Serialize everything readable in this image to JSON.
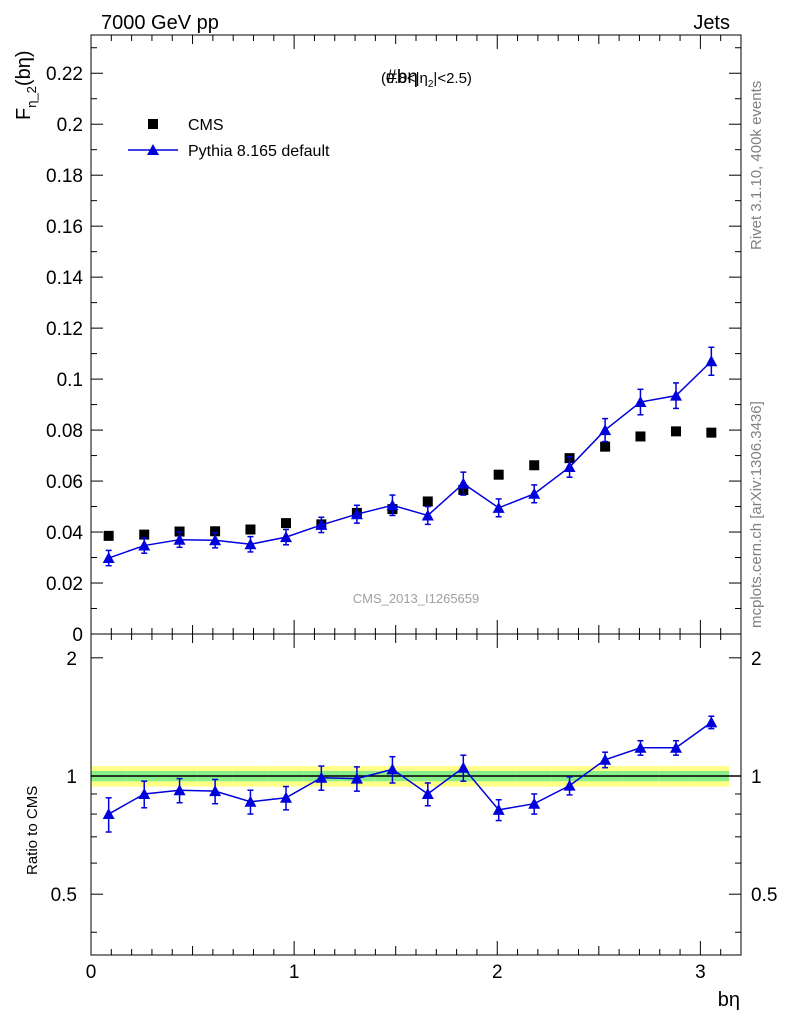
{
  "header": {
    "left": "7000 GeV pp",
    "right": "Jets"
  },
  "side_labels": {
    "rivet": "Rivet 3.1.10,  400k events",
    "mcplots": "mcplots.cern.ch [arXiv:1306.3436]"
  },
  "chart_data": {
    "type": "scatter",
    "title_main": "#bη",
    "title_sub": "(0.8<|η",
    "title_sub_index": "2",
    "title_sub_end": "|<2.5)",
    "analysis_label": "CMS_2013_I1265659",
    "ylabel": "F",
    "ylabel_sub": "η_2",
    "ylabel_tail": "(bη)",
    "xlabel": "bη",
    "ratio_ylabel": "Ratio to CMS",
    "xlim": [
      0,
      3.2
    ],
    "ylim": [
      0,
      0.235
    ],
    "ratio_ylim": [
      0.35,
      2.3
    ],
    "x_ticks": [
      "0",
      "1",
      "2",
      "3"
    ],
    "y_ticks": [
      "0",
      "0.02",
      "0.04",
      "0.06",
      "0.08",
      "0.1",
      "0.12",
      "0.14",
      "0.16",
      "0.18",
      "0.2",
      "0.22"
    ],
    "ratio_ticks": [
      "0.5",
      "1",
      "2"
    ],
    "legend": {
      "cms": "CMS",
      "pythia": "Pythia 8.165 default"
    },
    "x": [
      0.087,
      0.262,
      0.436,
      0.611,
      0.785,
      0.96,
      1.134,
      1.309,
      1.484,
      1.658,
      1.833,
      2.007,
      2.182,
      2.356,
      2.531,
      2.705,
      2.88,
      3.054
    ],
    "series": [
      {
        "name": "CMS",
        "values": [
          0.0385,
          0.039,
          0.0402,
          0.0403,
          0.041,
          0.0435,
          0.043,
          0.0475,
          0.049,
          0.052,
          0.0565,
          0.0625,
          0.0662,
          0.069,
          0.0735,
          0.0775,
          0.0795,
          0.079
        ],
        "band_total": [
          0.06,
          0.06,
          0.06,
          0.06,
          0.06,
          0.06,
          0.06,
          0.06,
          0.06,
          0.06,
          0.06,
          0.06,
          0.06,
          0.06,
          0.06,
          0.06,
          0.06,
          0.06
        ],
        "band_stat": [
          0.03,
          0.03,
          0.03,
          0.03,
          0.03,
          0.03,
          0.03,
          0.03,
          0.03,
          0.03,
          0.03,
          0.03,
          0.03,
          0.03,
          0.03,
          0.03,
          0.03,
          0.03
        ]
      },
      {
        "name": "Pythia 8.165 default",
        "values": [
          0.0298,
          0.0347,
          0.037,
          0.0368,
          0.0352,
          0.038,
          0.0428,
          0.047,
          0.0505,
          0.0465,
          0.059,
          0.0495,
          0.055,
          0.0655,
          0.08,
          0.091,
          0.0935,
          0.107
        ],
        "errors": [
          0.003,
          0.003,
          0.003,
          0.003,
          0.003,
          0.003,
          0.003,
          0.0035,
          0.004,
          0.0035,
          0.0045,
          0.0035,
          0.0035,
          0.004,
          0.0045,
          0.005,
          0.005,
          0.0055
        ],
        "ratio": [
          0.8,
          0.9,
          0.92,
          0.915,
          0.86,
          0.88,
          0.99,
          0.985,
          1.04,
          0.9,
          1.05,
          0.82,
          0.85,
          0.945,
          1.1,
          1.18,
          1.18,
          1.37
        ],
        "ratio_errors": [
          0.08,
          0.07,
          0.065,
          0.065,
          0.06,
          0.06,
          0.07,
          0.07,
          0.08,
          0.06,
          0.08,
          0.05,
          0.05,
          0.05,
          0.05,
          0.05,
          0.05,
          0.05
        ]
      }
    ]
  },
  "colors": {
    "cms": "#000000",
    "pythia": "#0000dd",
    "band_outer": "#ffff88",
    "band_inner": "#88ee88",
    "ref_line": "#000000"
  }
}
